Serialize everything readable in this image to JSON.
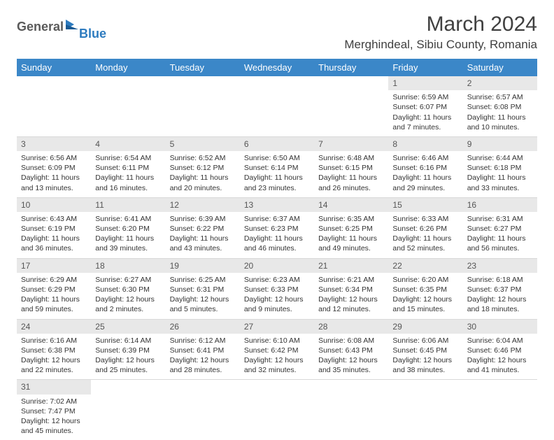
{
  "logo": {
    "general": "General",
    "blue": "Blue"
  },
  "title": "March 2024",
  "location": "Merghindeal, Sibiu County, Romania",
  "colors": {
    "header_bg": "#3b87c8",
    "header_text": "#ffffff",
    "daynum_bg": "#e8e8e8",
    "border": "#d9d9d9",
    "text": "#333333",
    "logo_gray": "#5a5a5a",
    "logo_blue": "#2d7bbf",
    "bg": "#ffffff"
  },
  "day_headers": [
    "Sunday",
    "Monday",
    "Tuesday",
    "Wednesday",
    "Thursday",
    "Friday",
    "Saturday"
  ],
  "weeks": [
    [
      null,
      null,
      null,
      null,
      null,
      {
        "n": "1",
        "sr": "6:59 AM",
        "ss": "6:07 PM",
        "dl": "11 hours and 7 minutes."
      },
      {
        "n": "2",
        "sr": "6:57 AM",
        "ss": "6:08 PM",
        "dl": "11 hours and 10 minutes."
      }
    ],
    [
      {
        "n": "3",
        "sr": "6:56 AM",
        "ss": "6:09 PM",
        "dl": "11 hours and 13 minutes."
      },
      {
        "n": "4",
        "sr": "6:54 AM",
        "ss": "6:11 PM",
        "dl": "11 hours and 16 minutes."
      },
      {
        "n": "5",
        "sr": "6:52 AM",
        "ss": "6:12 PM",
        "dl": "11 hours and 20 minutes."
      },
      {
        "n": "6",
        "sr": "6:50 AM",
        "ss": "6:14 PM",
        "dl": "11 hours and 23 minutes."
      },
      {
        "n": "7",
        "sr": "6:48 AM",
        "ss": "6:15 PM",
        "dl": "11 hours and 26 minutes."
      },
      {
        "n": "8",
        "sr": "6:46 AM",
        "ss": "6:16 PM",
        "dl": "11 hours and 29 minutes."
      },
      {
        "n": "9",
        "sr": "6:44 AM",
        "ss": "6:18 PM",
        "dl": "11 hours and 33 minutes."
      }
    ],
    [
      {
        "n": "10",
        "sr": "6:43 AM",
        "ss": "6:19 PM",
        "dl": "11 hours and 36 minutes."
      },
      {
        "n": "11",
        "sr": "6:41 AM",
        "ss": "6:20 PM",
        "dl": "11 hours and 39 minutes."
      },
      {
        "n": "12",
        "sr": "6:39 AM",
        "ss": "6:22 PM",
        "dl": "11 hours and 43 minutes."
      },
      {
        "n": "13",
        "sr": "6:37 AM",
        "ss": "6:23 PM",
        "dl": "11 hours and 46 minutes."
      },
      {
        "n": "14",
        "sr": "6:35 AM",
        "ss": "6:25 PM",
        "dl": "11 hours and 49 minutes."
      },
      {
        "n": "15",
        "sr": "6:33 AM",
        "ss": "6:26 PM",
        "dl": "11 hours and 52 minutes."
      },
      {
        "n": "16",
        "sr": "6:31 AM",
        "ss": "6:27 PM",
        "dl": "11 hours and 56 minutes."
      }
    ],
    [
      {
        "n": "17",
        "sr": "6:29 AM",
        "ss": "6:29 PM",
        "dl": "11 hours and 59 minutes."
      },
      {
        "n": "18",
        "sr": "6:27 AM",
        "ss": "6:30 PM",
        "dl": "12 hours and 2 minutes."
      },
      {
        "n": "19",
        "sr": "6:25 AM",
        "ss": "6:31 PM",
        "dl": "12 hours and 5 minutes."
      },
      {
        "n": "20",
        "sr": "6:23 AM",
        "ss": "6:33 PM",
        "dl": "12 hours and 9 minutes."
      },
      {
        "n": "21",
        "sr": "6:21 AM",
        "ss": "6:34 PM",
        "dl": "12 hours and 12 minutes."
      },
      {
        "n": "22",
        "sr": "6:20 AM",
        "ss": "6:35 PM",
        "dl": "12 hours and 15 minutes."
      },
      {
        "n": "23",
        "sr": "6:18 AM",
        "ss": "6:37 PM",
        "dl": "12 hours and 18 minutes."
      }
    ],
    [
      {
        "n": "24",
        "sr": "6:16 AM",
        "ss": "6:38 PM",
        "dl": "12 hours and 22 minutes."
      },
      {
        "n": "25",
        "sr": "6:14 AM",
        "ss": "6:39 PM",
        "dl": "12 hours and 25 minutes."
      },
      {
        "n": "26",
        "sr": "6:12 AM",
        "ss": "6:41 PM",
        "dl": "12 hours and 28 minutes."
      },
      {
        "n": "27",
        "sr": "6:10 AM",
        "ss": "6:42 PM",
        "dl": "12 hours and 32 minutes."
      },
      {
        "n": "28",
        "sr": "6:08 AM",
        "ss": "6:43 PM",
        "dl": "12 hours and 35 minutes."
      },
      {
        "n": "29",
        "sr": "6:06 AM",
        "ss": "6:45 PM",
        "dl": "12 hours and 38 minutes."
      },
      {
        "n": "30",
        "sr": "6:04 AM",
        "ss": "6:46 PM",
        "dl": "12 hours and 41 minutes."
      }
    ],
    [
      {
        "n": "31",
        "sr": "7:02 AM",
        "ss": "7:47 PM",
        "dl": "12 hours and 45 minutes."
      },
      null,
      null,
      null,
      null,
      null,
      null
    ]
  ],
  "labels": {
    "sunrise": "Sunrise:",
    "sunset": "Sunset:",
    "daylight": "Daylight:"
  }
}
